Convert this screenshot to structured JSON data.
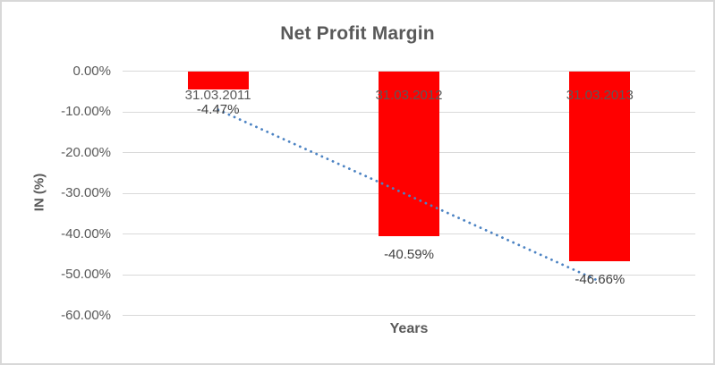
{
  "chart_data": {
    "type": "bar",
    "title": "Net Profit Margin",
    "xlabel": "Years",
    "ylabel": "IN (%)",
    "categories": [
      "31.03.2011",
      "31.03.2012",
      "31.03.2013"
    ],
    "values": [
      -4.47,
      -40.59,
      -46.66
    ],
    "data_labels": [
      "-4.47%",
      "-40.59%",
      "-46.66%"
    ],
    "y_ticks": [
      {
        "label": "0.00%",
        "value": 0
      },
      {
        "label": "-10.00%",
        "value": -10
      },
      {
        "label": "-20.00%",
        "value": -20
      },
      {
        "label": "-30.00%",
        "value": -30
      },
      {
        "label": "-40.00%",
        "value": -40
      },
      {
        "label": "-50.00%",
        "value": -50
      },
      {
        "label": "-60.00%",
        "value": -60
      }
    ],
    "ylim": [
      -60,
      0
    ],
    "grid": true,
    "legend": "none",
    "bar_color": "#FF0000",
    "trendline": {
      "kind": "linear",
      "style": "round-dotted",
      "color": "#4C83C3"
    },
    "colors": {
      "title_text": "#595959",
      "axis_text": "#595959",
      "data_label_text": "#404040",
      "gridline": "#D9D9D9",
      "frame_border": "#D8D8D8",
      "background": "#FFFFFF"
    }
  }
}
